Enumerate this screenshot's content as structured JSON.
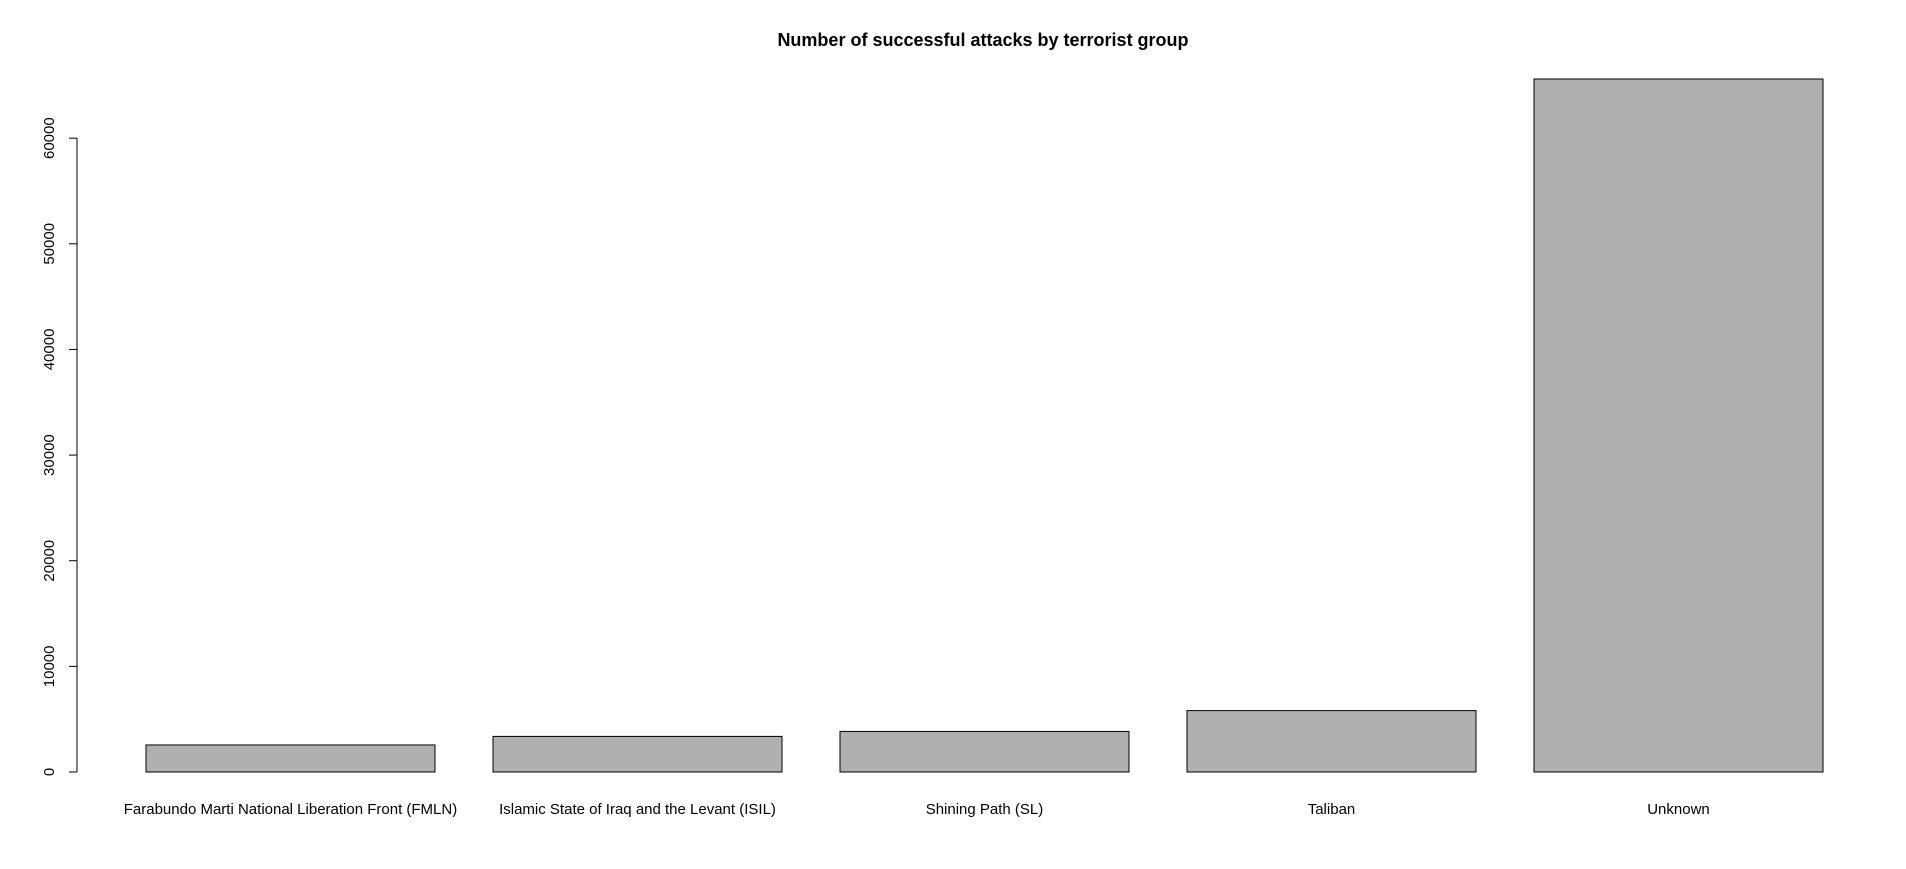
{
  "chart_data": {
    "type": "bar",
    "title": "Number of successful attacks by terrorist group",
    "categories": [
      "Farabundo Marti National Liberation Front (FMLN)",
      "Islamic State of Iraq and the Levant (ISIL)",
      "Shining Path (SL)",
      "Taliban",
      "Unknown"
    ],
    "values": [
      2560,
      3370,
      3840,
      5810,
      65600
    ],
    "color": "#b0b0b0",
    "ylim": [
      0,
      65600
    ],
    "yticks": [
      0,
      10000,
      20000,
      30000,
      40000,
      50000,
      60000
    ],
    "grid": false
  }
}
